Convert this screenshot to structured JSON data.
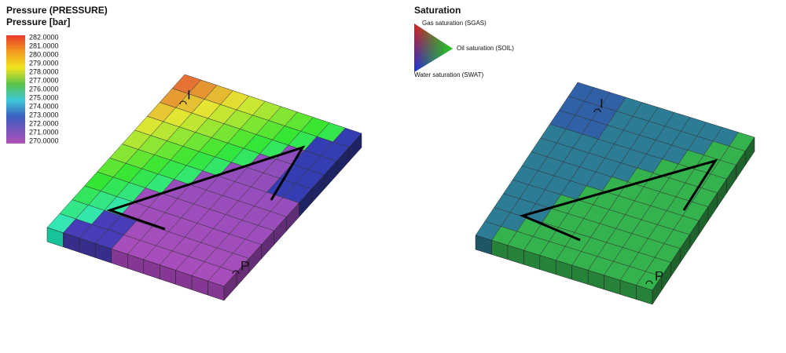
{
  "pressure_legend": {
    "title": "Pressure (PRESSURE)",
    "unit": "Pressure [bar]",
    "ticks": [
      "282.0000",
      "281.0000",
      "280.0000",
      "279.0000",
      "278.0000",
      "277.0000",
      "276.0000",
      "275.0000",
      "274.0000",
      "273.0000",
      "272.0000",
      "271.0000",
      "270.0000"
    ]
  },
  "saturation_legend": {
    "title": "Saturation",
    "gas": "Gas saturation (SGAS)",
    "oil": "Oil saturation (SOIL)",
    "water": "Water saturation (SWAT)"
  },
  "left_grid": {
    "wells": [
      "I",
      "P"
    ]
  },
  "right_grid": {
    "wells": [
      "I",
      "P"
    ]
  }
}
